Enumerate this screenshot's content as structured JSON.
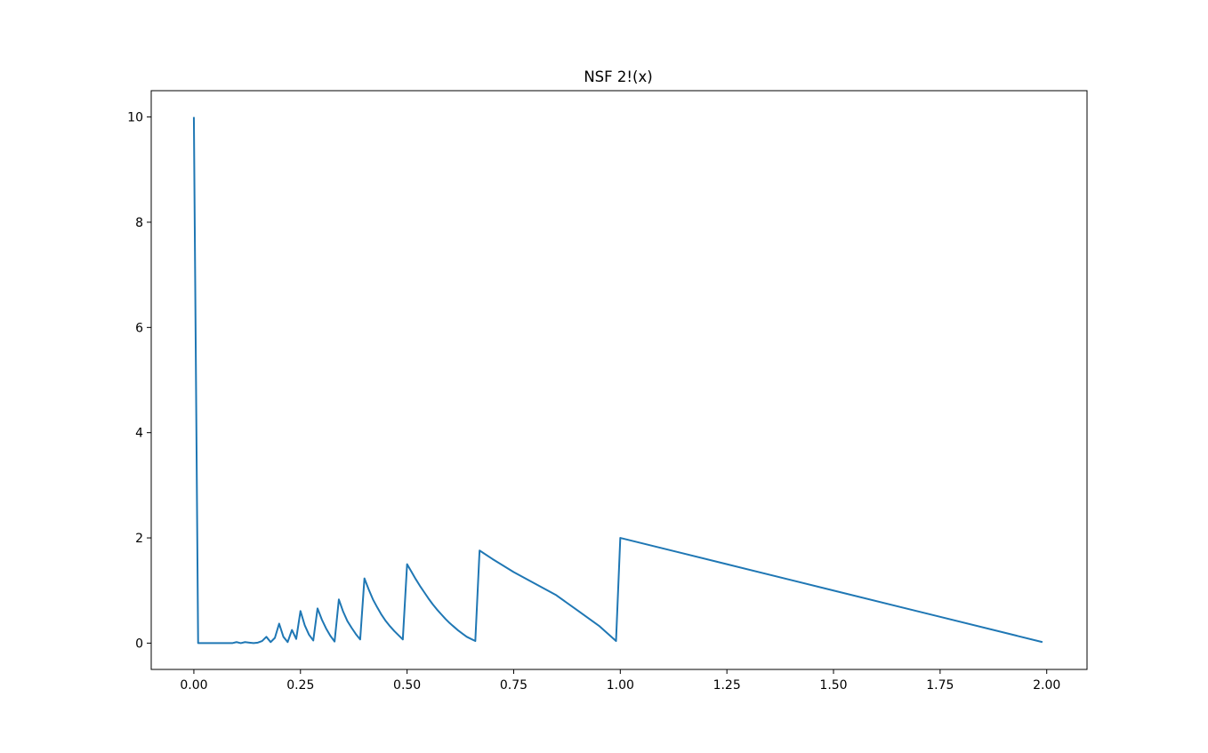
{
  "chart_data": {
    "type": "line",
    "title": "NSF 2!(x)",
    "xlabel": "",
    "ylabel": "",
    "xlim": [
      -0.1,
      2.0945
    ],
    "ylim": [
      -0.5,
      10.5
    ],
    "x_ticks": [
      0.0,
      0.25,
      0.5,
      0.75,
      1.0,
      1.25,
      1.5,
      1.75,
      2.0
    ],
    "x_tick_labels": [
      "0.00",
      "0.25",
      "0.50",
      "0.75",
      "1.00",
      "1.25",
      "1.50",
      "1.75",
      "2.00"
    ],
    "y_ticks": [
      0,
      2,
      4,
      6,
      8,
      10
    ],
    "y_tick_labels": [
      "0",
      "2",
      "4",
      "6",
      "8",
      "10"
    ],
    "grid": false,
    "series": [
      {
        "color": "#1f77b4",
        "x": [
          0.0,
          0.01,
          0.02,
          0.03,
          0.04,
          0.05,
          0.06,
          0.07,
          0.08,
          0.09,
          0.1,
          0.11,
          0.12,
          0.13,
          0.14,
          0.15,
          0.16,
          0.17,
          0.18,
          0.19,
          0.2,
          0.21,
          0.22,
          0.23,
          0.24,
          0.25,
          0.26,
          0.27,
          0.28,
          0.29,
          0.3,
          0.31,
          0.32,
          0.33,
          0.34,
          0.35,
          0.36,
          0.37,
          0.38,
          0.39,
          0.4,
          0.41,
          0.42,
          0.43,
          0.44,
          0.45,
          0.46,
          0.47,
          0.48,
          0.49,
          0.5,
          0.51,
          0.52,
          0.53,
          0.54,
          0.55,
          0.56,
          0.57,
          0.58,
          0.59,
          0.6,
          0.61,
          0.62,
          0.63,
          0.64,
          0.65,
          0.66,
          0.67,
          0.7,
          0.75,
          0.8,
          0.85,
          0.9,
          0.95,
          0.99,
          1.0,
          1.25,
          1.5,
          1.75,
          1.99
        ],
        "y": [
          10.0,
          0.0,
          0.0,
          0.0,
          0.0,
          0.0,
          0.0,
          0.0,
          0.0,
          0.0,
          0.02,
          0.0,
          0.02,
          0.01,
          0.0,
          0.01,
          0.04,
          0.12,
          0.02,
          0.1,
          0.37,
          0.12,
          0.02,
          0.25,
          0.08,
          0.61,
          0.34,
          0.16,
          0.05,
          0.66,
          0.45,
          0.28,
          0.14,
          0.03,
          0.83,
          0.6,
          0.42,
          0.29,
          0.17,
          0.07,
          1.23,
          1.02,
          0.83,
          0.68,
          0.54,
          0.42,
          0.32,
          0.23,
          0.15,
          0.07,
          1.5,
          1.36,
          1.22,
          1.09,
          0.97,
          0.85,
          0.74,
          0.64,
          0.55,
          0.46,
          0.38,
          0.31,
          0.24,
          0.18,
          0.12,
          0.08,
          0.04,
          1.76,
          1.6,
          1.35,
          1.13,
          0.91,
          0.62,
          0.33,
          0.04,
          2.0,
          1.5,
          1.0,
          0.5,
          0.02
        ]
      }
    ]
  }
}
